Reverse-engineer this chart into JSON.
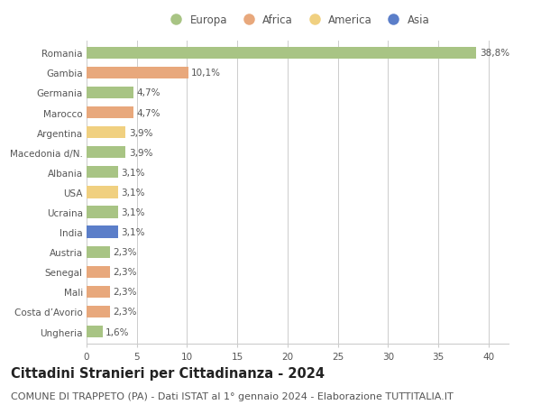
{
  "countries": [
    "Romania",
    "Gambia",
    "Germania",
    "Marocco",
    "Argentina",
    "Macedonia d/N.",
    "Albania",
    "USA",
    "Ucraina",
    "India",
    "Austria",
    "Senegal",
    "Mali",
    "Costa d’Avorio",
    "Ungheria"
  ],
  "values": [
    38.8,
    10.1,
    4.7,
    4.7,
    3.9,
    3.9,
    3.1,
    3.1,
    3.1,
    3.1,
    2.3,
    2.3,
    2.3,
    2.3,
    1.6
  ],
  "labels": [
    "38,8%",
    "10,1%",
    "4,7%",
    "4,7%",
    "3,9%",
    "3,9%",
    "3,1%",
    "3,1%",
    "3,1%",
    "3,1%",
    "2,3%",
    "2,3%",
    "2,3%",
    "2,3%",
    "1,6%"
  ],
  "continents": [
    "Europa",
    "Africa",
    "Europa",
    "Africa",
    "America",
    "Europa",
    "Europa",
    "America",
    "Europa",
    "Asia",
    "Europa",
    "Africa",
    "Africa",
    "Africa",
    "Europa"
  ],
  "colors": {
    "Europa": "#a8c484",
    "Africa": "#e8a87c",
    "America": "#f0d080",
    "Asia": "#5b7ec9"
  },
  "title": "Cittadini Stranieri per Cittadinanza - 2024",
  "subtitle": "COMUNE DI TRAPPETO (PA) - Dati ISTAT al 1° gennaio 2024 - Elaborazione TUTTITALIA.IT",
  "xlim": [
    0,
    42
  ],
  "xticks": [
    0,
    5,
    10,
    15,
    20,
    25,
    30,
    35,
    40
  ],
  "background_color": "#ffffff",
  "grid_color": "#cccccc",
  "bar_height": 0.6,
  "title_fontsize": 10.5,
  "subtitle_fontsize": 8,
  "label_fontsize": 7.5,
  "tick_fontsize": 7.5,
  "legend_fontsize": 8.5
}
